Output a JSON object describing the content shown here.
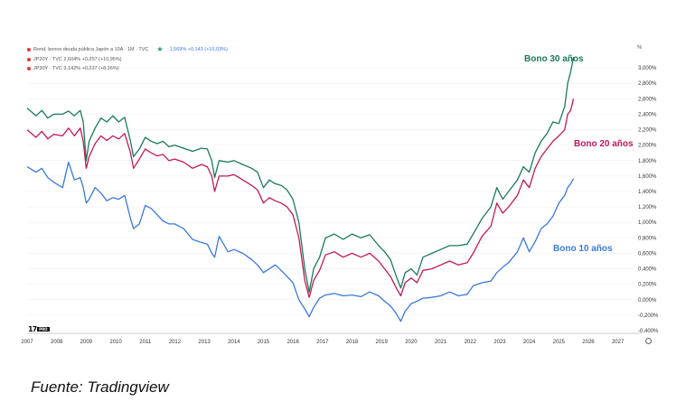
{
  "legend": {
    "row1": "Rend. bonos deuda pública Japón a 10A · 1M · TVC",
    "row1_value": "1,569%  +0,143 (+10,03%)",
    "row2": "JP20Y · TVC  2,604%  +0,257 (+10,95%)",
    "row3": "JP30Y · TVC  3,142%  +0,237 (+8,16%)"
  },
  "axis_unit": "%",
  "labels": {
    "bono30": "Bono 30 años",
    "bono20": "Bono 20 años",
    "bono10": "Bono 10 años"
  },
  "source": "Fuente: Tradingview",
  "logo": {
    "text": "17",
    "tag": "PRO"
  },
  "icons": {
    "settings": "clock-icon",
    "legend_marker": "star-icon"
  },
  "colors": {
    "bono30": "#1a7a58",
    "bono20": "#c2185b",
    "bono10": "#3a78e0",
    "grid": "#eeeeee",
    "axis_text": "#333333"
  },
  "chart_data": {
    "type": "line",
    "title": "",
    "xlabel": "",
    "ylabel": "%",
    "x_ticks": [
      "2007",
      "2008",
      "2009",
      "2010",
      "2011",
      "2012",
      "2013",
      "2014",
      "2015",
      "2016",
      "2017",
      "2018",
      "2019",
      "2020",
      "2021",
      "2022",
      "2023",
      "2024",
      "2025",
      "2026",
      "2027"
    ],
    "y_ticks": [
      "3,000%",
      "2,800%",
      "2,600%",
      "2,400%",
      "2,200%",
      "2,000%",
      "1,800%",
      "1,600%",
      "1,400%",
      "1,200%",
      "1,000%",
      "0,800%",
      "0,600%",
      "0,400%",
      "0,200%",
      "0,000%",
      "-0,200%",
      "-0,400%"
    ],
    "ylim": [
      -0.4,
      3.2
    ],
    "xlim": [
      2007.0,
      2027.5
    ],
    "series": [
      {
        "name": "Bono 30 años",
        "points": [
          [
            2007.0,
            2.48
          ],
          [
            2007.3,
            2.38
          ],
          [
            2007.5,
            2.45
          ],
          [
            2007.7,
            2.35
          ],
          [
            2007.9,
            2.4
          ],
          [
            2008.2,
            2.4
          ],
          [
            2008.4,
            2.44
          ],
          [
            2008.6,
            2.38
          ],
          [
            2008.8,
            2.45
          ],
          [
            2008.9,
            2.3
          ],
          [
            2009.0,
            1.8
          ],
          [
            2009.1,
            2.05
          ],
          [
            2009.3,
            2.22
          ],
          [
            2009.5,
            2.35
          ],
          [
            2009.7,
            2.3
          ],
          [
            2009.9,
            2.38
          ],
          [
            2010.1,
            2.3
          ],
          [
            2010.3,
            2.36
          ],
          [
            2010.5,
            2.05
          ],
          [
            2010.6,
            1.85
          ],
          [
            2010.8,
            1.95
          ],
          [
            2011.0,
            2.1
          ],
          [
            2011.2,
            2.05
          ],
          [
            2011.4,
            2.02
          ],
          [
            2011.6,
            2.05
          ],
          [
            2011.8,
            1.98
          ],
          [
            2012.0,
            2.0
          ],
          [
            2012.3,
            1.96
          ],
          [
            2012.6,
            1.92
          ],
          [
            2012.9,
            1.96
          ],
          [
            2013.1,
            1.95
          ],
          [
            2013.25,
            1.8
          ],
          [
            2013.35,
            1.58
          ],
          [
            2013.5,
            1.8
          ],
          [
            2013.8,
            1.78
          ],
          [
            2014.0,
            1.8
          ],
          [
            2014.3,
            1.75
          ],
          [
            2014.6,
            1.7
          ],
          [
            2014.8,
            1.65
          ],
          [
            2015.0,
            1.45
          ],
          [
            2015.2,
            1.55
          ],
          [
            2015.4,
            1.5
          ],
          [
            2015.6,
            1.48
          ],
          [
            2015.8,
            1.42
          ],
          [
            2016.0,
            1.3
          ],
          [
            2016.2,
            1.0
          ],
          [
            2016.4,
            0.4
          ],
          [
            2016.55,
            0.1
          ],
          [
            2016.7,
            0.4
          ],
          [
            2016.9,
            0.55
          ],
          [
            2017.1,
            0.8
          ],
          [
            2017.4,
            0.85
          ],
          [
            2017.7,
            0.78
          ],
          [
            2018.0,
            0.85
          ],
          [
            2018.3,
            0.8
          ],
          [
            2018.6,
            0.84
          ],
          [
            2018.9,
            0.7
          ],
          [
            2019.1,
            0.62
          ],
          [
            2019.3,
            0.52
          ],
          [
            2019.5,
            0.3
          ],
          [
            2019.65,
            0.15
          ],
          [
            2019.8,
            0.35
          ],
          [
            2020.0,
            0.4
          ],
          [
            2020.2,
            0.32
          ],
          [
            2020.4,
            0.55
          ],
          [
            2020.7,
            0.6
          ],
          [
            2021.0,
            0.65
          ],
          [
            2021.3,
            0.7
          ],
          [
            2021.6,
            0.7
          ],
          [
            2021.9,
            0.72
          ],
          [
            2022.1,
            0.85
          ],
          [
            2022.4,
            1.05
          ],
          [
            2022.7,
            1.2
          ],
          [
            2022.9,
            1.45
          ],
          [
            2023.1,
            1.3
          ],
          [
            2023.3,
            1.4
          ],
          [
            2023.6,
            1.55
          ],
          [
            2023.8,
            1.72
          ],
          [
            2024.0,
            1.65
          ],
          [
            2024.2,
            1.9
          ],
          [
            2024.4,
            2.05
          ],
          [
            2024.6,
            2.15
          ],
          [
            2024.8,
            2.3
          ],
          [
            2025.0,
            2.28
          ],
          [
            2025.2,
            2.5
          ],
          [
            2025.3,
            2.8
          ],
          [
            2025.4,
            2.95
          ],
          [
            2025.5,
            3.14
          ]
        ]
      },
      {
        "name": "Bono 20 años",
        "points": [
          [
            2007.0,
            2.2
          ],
          [
            2007.3,
            2.1
          ],
          [
            2007.5,
            2.18
          ],
          [
            2007.7,
            2.08
          ],
          [
            2007.9,
            2.14
          ],
          [
            2008.2,
            2.12
          ],
          [
            2008.4,
            2.22
          ],
          [
            2008.6,
            2.12
          ],
          [
            2008.8,
            2.22
          ],
          [
            2008.9,
            2.05
          ],
          [
            2009.0,
            1.7
          ],
          [
            2009.1,
            1.85
          ],
          [
            2009.3,
            2.02
          ],
          [
            2009.5,
            2.12
          ],
          [
            2009.7,
            2.06
          ],
          [
            2009.9,
            2.12
          ],
          [
            2010.1,
            2.08
          ],
          [
            2010.3,
            2.15
          ],
          [
            2010.5,
            1.9
          ],
          [
            2010.6,
            1.7
          ],
          [
            2010.8,
            1.82
          ],
          [
            2011.0,
            1.95
          ],
          [
            2011.2,
            1.9
          ],
          [
            2011.4,
            1.86
          ],
          [
            2011.6,
            1.88
          ],
          [
            2011.8,
            1.8
          ],
          [
            2012.0,
            1.82
          ],
          [
            2012.3,
            1.78
          ],
          [
            2012.6,
            1.7
          ],
          [
            2012.9,
            1.75
          ],
          [
            2013.1,
            1.72
          ],
          [
            2013.25,
            1.6
          ],
          [
            2013.35,
            1.4
          ],
          [
            2013.5,
            1.6
          ],
          [
            2013.8,
            1.6
          ],
          [
            2014.0,
            1.62
          ],
          [
            2014.3,
            1.55
          ],
          [
            2014.6,
            1.48
          ],
          [
            2014.8,
            1.42
          ],
          [
            2015.0,
            1.25
          ],
          [
            2015.2,
            1.32
          ],
          [
            2015.4,
            1.28
          ],
          [
            2015.6,
            1.25
          ],
          [
            2015.8,
            1.2
          ],
          [
            2016.0,
            1.1
          ],
          [
            2016.2,
            0.8
          ],
          [
            2016.4,
            0.25
          ],
          [
            2016.55,
            0.03
          ],
          [
            2016.7,
            0.25
          ],
          [
            2016.9,
            0.38
          ],
          [
            2017.1,
            0.58
          ],
          [
            2017.4,
            0.62
          ],
          [
            2017.7,
            0.55
          ],
          [
            2018.0,
            0.6
          ],
          [
            2018.3,
            0.55
          ],
          [
            2018.6,
            0.6
          ],
          [
            2018.9,
            0.5
          ],
          [
            2019.1,
            0.4
          ],
          [
            2019.3,
            0.3
          ],
          [
            2019.5,
            0.15
          ],
          [
            2019.65,
            0.05
          ],
          [
            2019.8,
            0.22
          ],
          [
            2020.0,
            0.28
          ],
          [
            2020.2,
            0.22
          ],
          [
            2020.4,
            0.38
          ],
          [
            2020.7,
            0.4
          ],
          [
            2021.0,
            0.45
          ],
          [
            2021.3,
            0.5
          ],
          [
            2021.6,
            0.45
          ],
          [
            2021.9,
            0.48
          ],
          [
            2022.1,
            0.6
          ],
          [
            2022.4,
            0.82
          ],
          [
            2022.7,
            0.95
          ],
          [
            2022.9,
            1.25
          ],
          [
            2023.1,
            1.12
          ],
          [
            2023.3,
            1.2
          ],
          [
            2023.6,
            1.35
          ],
          [
            2023.8,
            1.55
          ],
          [
            2024.0,
            1.45
          ],
          [
            2024.2,
            1.7
          ],
          [
            2024.4,
            1.85
          ],
          [
            2024.6,
            1.95
          ],
          [
            2024.8,
            2.05
          ],
          [
            2025.0,
            2.12
          ],
          [
            2025.2,
            2.2
          ],
          [
            2025.3,
            2.4
          ],
          [
            2025.4,
            2.45
          ],
          [
            2025.5,
            2.6
          ]
        ]
      },
      {
        "name": "Bono 10 años",
        "points": [
          [
            2007.0,
            1.72
          ],
          [
            2007.3,
            1.65
          ],
          [
            2007.5,
            1.7
          ],
          [
            2007.7,
            1.58
          ],
          [
            2007.9,
            1.52
          ],
          [
            2008.2,
            1.45
          ],
          [
            2008.4,
            1.78
          ],
          [
            2008.6,
            1.55
          ],
          [
            2008.8,
            1.58
          ],
          [
            2008.9,
            1.45
          ],
          [
            2009.0,
            1.25
          ],
          [
            2009.1,
            1.3
          ],
          [
            2009.3,
            1.45
          ],
          [
            2009.5,
            1.38
          ],
          [
            2009.7,
            1.28
          ],
          [
            2009.9,
            1.32
          ],
          [
            2010.1,
            1.3
          ],
          [
            2010.3,
            1.35
          ],
          [
            2010.5,
            1.05
          ],
          [
            2010.6,
            0.92
          ],
          [
            2010.8,
            0.98
          ],
          [
            2011.0,
            1.22
          ],
          [
            2011.2,
            1.18
          ],
          [
            2011.4,
            1.1
          ],
          [
            2011.6,
            1.02
          ],
          [
            2011.8,
            0.98
          ],
          [
            2012.0,
            0.98
          ],
          [
            2012.3,
            0.92
          ],
          [
            2012.6,
            0.78
          ],
          [
            2012.9,
            0.74
          ],
          [
            2013.1,
            0.72
          ],
          [
            2013.25,
            0.6
          ],
          [
            2013.35,
            0.55
          ],
          [
            2013.5,
            0.82
          ],
          [
            2013.8,
            0.62
          ],
          [
            2014.0,
            0.65
          ],
          [
            2014.3,
            0.6
          ],
          [
            2014.6,
            0.52
          ],
          [
            2014.8,
            0.45
          ],
          [
            2015.0,
            0.35
          ],
          [
            2015.2,
            0.4
          ],
          [
            2015.4,
            0.45
          ],
          [
            2015.6,
            0.38
          ],
          [
            2015.8,
            0.3
          ],
          [
            2016.0,
            0.22
          ],
          [
            2016.2,
            0.0
          ],
          [
            2016.4,
            -0.12
          ],
          [
            2016.55,
            -0.22
          ],
          [
            2016.7,
            -0.1
          ],
          [
            2016.9,
            0.02
          ],
          [
            2017.1,
            0.06
          ],
          [
            2017.4,
            0.08
          ],
          [
            2017.7,
            0.05
          ],
          [
            2018.0,
            0.06
          ],
          [
            2018.3,
            0.04
          ],
          [
            2018.6,
            0.1
          ],
          [
            2018.9,
            0.05
          ],
          [
            2019.1,
            -0.02
          ],
          [
            2019.3,
            -0.08
          ],
          [
            2019.5,
            -0.18
          ],
          [
            2019.65,
            -0.28
          ],
          [
            2019.8,
            -0.15
          ],
          [
            2020.0,
            -0.05
          ],
          [
            2020.2,
            -0.02
          ],
          [
            2020.4,
            0.02
          ],
          [
            2020.7,
            0.03
          ],
          [
            2021.0,
            0.05
          ],
          [
            2021.3,
            0.1
          ],
          [
            2021.6,
            0.05
          ],
          [
            2021.9,
            0.07
          ],
          [
            2022.1,
            0.18
          ],
          [
            2022.4,
            0.22
          ],
          [
            2022.7,
            0.24
          ],
          [
            2022.9,
            0.35
          ],
          [
            2023.1,
            0.42
          ],
          [
            2023.3,
            0.48
          ],
          [
            2023.6,
            0.62
          ],
          [
            2023.8,
            0.8
          ],
          [
            2024.0,
            0.62
          ],
          [
            2024.2,
            0.75
          ],
          [
            2024.4,
            0.92
          ],
          [
            2024.6,
            0.98
          ],
          [
            2024.8,
            1.08
          ],
          [
            2025.0,
            1.25
          ],
          [
            2025.2,
            1.35
          ],
          [
            2025.3,
            1.45
          ],
          [
            2025.4,
            1.5
          ],
          [
            2025.5,
            1.57
          ]
        ]
      }
    ]
  }
}
